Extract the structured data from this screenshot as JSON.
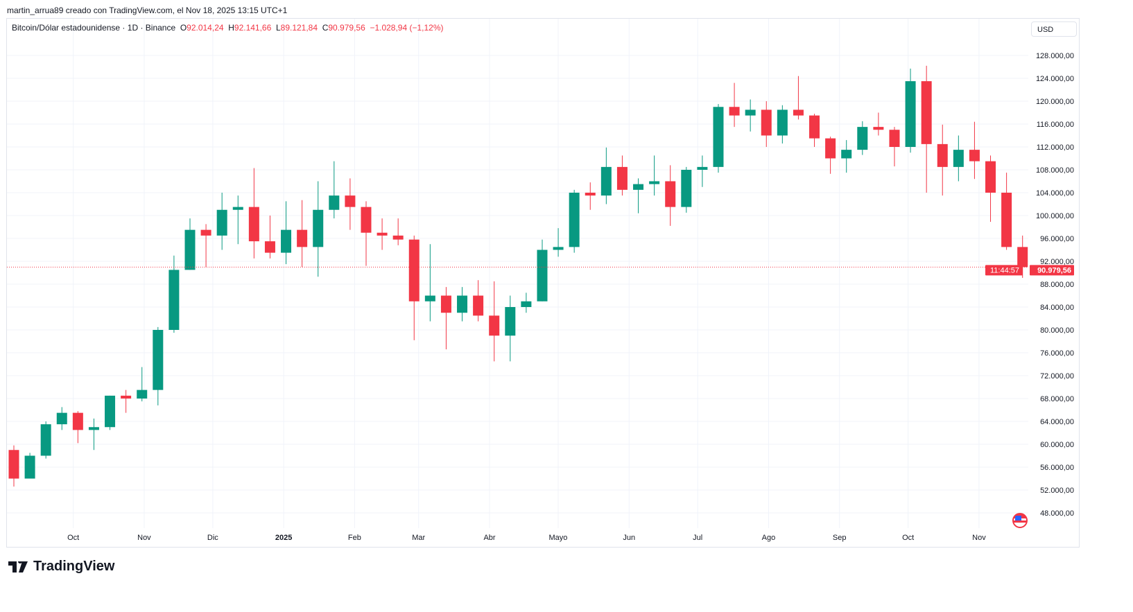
{
  "credit": "martin_arrua89 creado con TradingView.com, el Nov 18, 2025 13:15 UTC+1",
  "legend": {
    "symbol": "Bitcoin/Dólar estadounidense · 1D · Binance",
    "o_label": "O",
    "o": "92.014,24",
    "h_label": "H",
    "h": "92.141,66",
    "l_label": "L",
    "l": "89.121,84",
    "c_label": "C",
    "c": "90.979,56",
    "change": "−1.028,94 (−1,12%)"
  },
  "currency_button": "USD",
  "last_price_label": {
    "price": "90.979,56",
    "countdown": "11:44:57"
  },
  "logo_text": "TradingView",
  "colors": {
    "up": "#089981",
    "down": "#f23645",
    "grid": "#f0f3fa",
    "text": "#131722"
  },
  "chart_data": {
    "type": "candlestick",
    "note_interval": "weekly approximation of the daily candles shown",
    "ylim": [
      46000,
      130000
    ],
    "y_ticks": [
      "48.000,00",
      "52.000,00",
      "56.000,00",
      "60.000,00",
      "64.000,00",
      "68.000,00",
      "72.000,00",
      "76.000,00",
      "80.000,00",
      "84.000,00",
      "88.000,00",
      "92.000,00",
      "96.000,00",
      "100.000,00",
      "104.000,00",
      "108.000,00",
      "112.000,00",
      "116.000,00",
      "120.000,00",
      "124.000,00",
      "128.000,00"
    ],
    "y_tick_values": [
      48000,
      52000,
      56000,
      60000,
      64000,
      68000,
      72000,
      76000,
      80000,
      84000,
      88000,
      92000,
      96000,
      100000,
      104000,
      108000,
      112000,
      116000,
      120000,
      124000,
      128000
    ],
    "x_range": [
      "2024-09-02",
      "2025-11-18"
    ],
    "x_ticks": [
      {
        "label": "Oct",
        "date": "2024-10-01"
      },
      {
        "label": "Nov",
        "date": "2024-11-01"
      },
      {
        "label": "Dic",
        "date": "2024-12-01"
      },
      {
        "label": "2025",
        "date": "2025-01-01"
      },
      {
        "label": "Feb",
        "date": "2025-02-01"
      },
      {
        "label": "Mar",
        "date": "2025-03-01"
      },
      {
        "label": "Abr",
        "date": "2025-04-01"
      },
      {
        "label": "Mayo",
        "date": "2025-05-01"
      },
      {
        "label": "Jun",
        "date": "2025-06-01"
      },
      {
        "label": "Jul",
        "date": "2025-07-01"
      },
      {
        "label": "Ago",
        "date": "2025-08-01"
      },
      {
        "label": "Sep",
        "date": "2025-09-01"
      },
      {
        "label": "Oct",
        "date": "2025-10-01"
      },
      {
        "label": "Nov",
        "date": "2025-11-01"
      }
    ],
    "last_price": 90979.56,
    "candles": [
      [
        "2024-09-02",
        59000,
        59800,
        52600,
        54000
      ],
      [
        "2024-09-09",
        54000,
        58500,
        54000,
        58000
      ],
      [
        "2024-09-16",
        58000,
        64000,
        57500,
        63500
      ],
      [
        "2024-09-23",
        63500,
        66500,
        62500,
        65500
      ],
      [
        "2024-09-30",
        65500,
        65800,
        60200,
        62500
      ],
      [
        "2024-10-07",
        62500,
        64500,
        59000,
        63000
      ],
      [
        "2024-10-14",
        63000,
        68500,
        62500,
        68500
      ],
      [
        "2024-10-21",
        68500,
        69500,
        65500,
        68000
      ],
      [
        "2024-10-28",
        68000,
        73500,
        67500,
        69500
      ],
      [
        "2024-11-04",
        69500,
        80500,
        66800,
        80000
      ],
      [
        "2024-11-11",
        80000,
        93000,
        79500,
        90500
      ],
      [
        "2024-11-18",
        90500,
        99500,
        90500,
        97500
      ],
      [
        "2024-11-25",
        97500,
        98500,
        91000,
        96500
      ],
      [
        "2024-12-02",
        96500,
        104000,
        94000,
        101000
      ],
      [
        "2024-12-09",
        101000,
        103500,
        95000,
        101500
      ],
      [
        "2024-12-16",
        101500,
        108300,
        92500,
        95500
      ],
      [
        "2024-12-23",
        95500,
        100000,
        92500,
        93500
      ],
      [
        "2024-12-30",
        93500,
        102500,
        91500,
        97500
      ],
      [
        "2025-01-06",
        97500,
        102700,
        91000,
        94500
      ],
      [
        "2025-01-13",
        94500,
        106000,
        89300,
        101000
      ],
      [
        "2025-01-20",
        101000,
        109500,
        99500,
        103500
      ],
      [
        "2025-01-27",
        103500,
        106500,
        97500,
        101500
      ],
      [
        "2025-02-03",
        101500,
        102500,
        91200,
        97000
      ],
      [
        "2025-02-10",
        97000,
        99500,
        94000,
        96500
      ],
      [
        "2025-02-17",
        96500,
        99500,
        94800,
        95800
      ],
      [
        "2025-02-24",
        95800,
        96500,
        78200,
        85000
      ],
      [
        "2025-03-03",
        85000,
        95000,
        81500,
        86000
      ],
      [
        "2025-03-10",
        86000,
        87500,
        76600,
        83000
      ],
      [
        "2025-03-17",
        83000,
        87500,
        81500,
        86000
      ],
      [
        "2025-03-24",
        86000,
        88700,
        81500,
        82500
      ],
      [
        "2025-03-31",
        82500,
        88500,
        74500,
        79000
      ],
      [
        "2025-04-07",
        79000,
        86000,
        74500,
        84000
      ],
      [
        "2025-04-14",
        84000,
        86500,
        83000,
        85000
      ],
      [
        "2025-04-21",
        85000,
        95800,
        85000,
        94000
      ],
      [
        "2025-04-28",
        94000,
        97800,
        92800,
        94500
      ],
      [
        "2025-05-05",
        94500,
        104500,
        93500,
        104000
      ],
      [
        "2025-05-12",
        104000,
        105800,
        101000,
        103500
      ],
      [
        "2025-05-19",
        103500,
        111900,
        102000,
        108500
      ],
      [
        "2025-05-26",
        108500,
        110500,
        103500,
        104500
      ],
      [
        "2025-06-02",
        104500,
        106500,
        100400,
        105500
      ],
      [
        "2025-06-09",
        105500,
        110500,
        103500,
        106000
      ],
      [
        "2025-06-16",
        106000,
        108800,
        98200,
        101500
      ],
      [
        "2025-06-23",
        101500,
        108500,
        100500,
        108000
      ],
      [
        "2025-06-30",
        108000,
        110500,
        105000,
        108500
      ],
      [
        "2025-07-07",
        108500,
        119500,
        107500,
        119000
      ],
      [
        "2025-07-14",
        119000,
        123200,
        115500,
        117500
      ],
      [
        "2025-07-21",
        117500,
        120300,
        114700,
        118500
      ],
      [
        "2025-07-28",
        118500,
        120000,
        112000,
        114000
      ],
      [
        "2025-08-04",
        114000,
        119300,
        112600,
        118500
      ],
      [
        "2025-08-11",
        118500,
        124400,
        116800,
        117500
      ],
      [
        "2025-08-18",
        117500,
        117800,
        112000,
        113500
      ],
      [
        "2025-08-25",
        113500,
        113800,
        107300,
        110000
      ],
      [
        "2025-09-01",
        110000,
        113200,
        107500,
        111500
      ],
      [
        "2025-09-08",
        111500,
        116500,
        110600,
        115500
      ],
      [
        "2025-09-15",
        115500,
        118000,
        114000,
        115000
      ],
      [
        "2025-09-22",
        115000,
        115500,
        108600,
        112000
      ],
      [
        "2025-09-29",
        112000,
        125700,
        111000,
        123500
      ],
      [
        "2025-10-06",
        123500,
        126200,
        104000,
        112500
      ],
      [
        "2025-10-13",
        112500,
        115900,
        103500,
        108500
      ],
      [
        "2025-10-20",
        108500,
        114000,
        106000,
        111500
      ],
      [
        "2025-10-27",
        111500,
        116400,
        106400,
        109500
      ],
      [
        "2025-11-03",
        109500,
        110500,
        98900,
        104000
      ],
      [
        "2025-11-10",
        104000,
        107500,
        94000,
        94500
      ],
      [
        "2025-11-17",
        94500,
        96500,
        89100,
        90980
      ]
    ]
  }
}
